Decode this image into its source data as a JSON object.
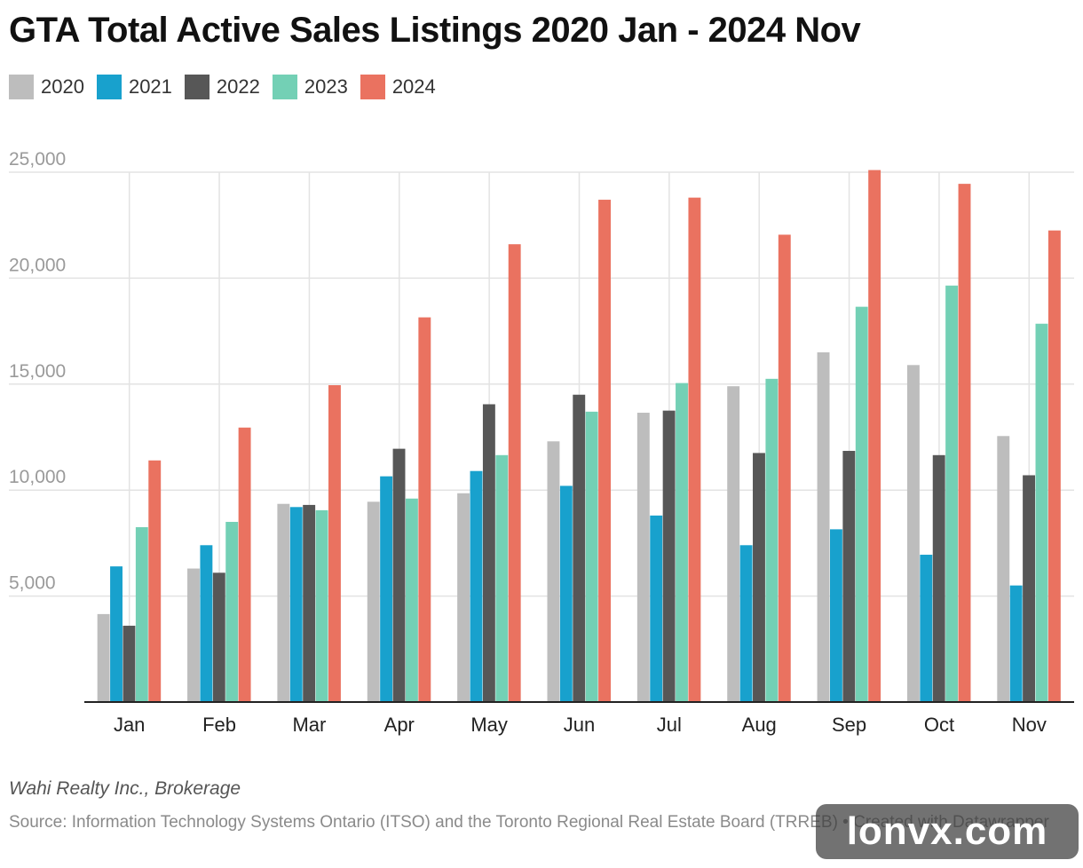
{
  "title": "GTA Total Active Sales Listings 2020 Jan - 2024 Nov",
  "credit": "Wahi Realty Inc., Brokerage",
  "source": "Source: Information Technology Systems Ontario (ITSO) and the Toronto Regional Real Estate Board (TRREB) • Created with Datawrapper",
  "watermark": "lonvx.com",
  "chart_data": {
    "type": "bar",
    "title": "GTA Total Active Sales Listings 2020 Jan - 2024 Nov",
    "xlabel": "",
    "ylabel": "",
    "ylim": [
      0,
      25000
    ],
    "yticks": [
      5000,
      10000,
      15000,
      20000,
      25000
    ],
    "ytick_labels": [
      "5,000",
      "10,000",
      "15,000",
      "20,000",
      "25,000"
    ],
    "grid": true,
    "legend_position": "top-left",
    "categories": [
      "Jan",
      "Feb",
      "Mar",
      "Apr",
      "May",
      "Jun",
      "Jul",
      "Aug",
      "Sep",
      "Oct",
      "Nov"
    ],
    "series": [
      {
        "name": "2020",
        "color": "#bdbdbd",
        "values": [
          4150,
          6300,
          9350,
          9450,
          9850,
          12300,
          13650,
          14900,
          16500,
          15900,
          12550
        ]
      },
      {
        "name": "2021",
        "color": "#18a1cd",
        "values": [
          6400,
          7400,
          9200,
          10650,
          10900,
          10200,
          8800,
          7400,
          8150,
          6950,
          5500
        ]
      },
      {
        "name": "2022",
        "color": "#575757",
        "values": [
          3600,
          6100,
          9300,
          11950,
          14050,
          14500,
          13750,
          11750,
          11850,
          11650,
          10700
        ]
      },
      {
        "name": "2023",
        "color": "#73d0b5",
        "values": [
          8250,
          8500,
          9050,
          9600,
          11650,
          13700,
          15050,
          15250,
          18650,
          19650,
          17850
        ]
      },
      {
        "name": "2024",
        "color": "#ea7260",
        "values": [
          11400,
          12950,
          14950,
          18150,
          21600,
          23700,
          23800,
          22050,
          25100,
          24450,
          22250
        ]
      }
    ]
  }
}
